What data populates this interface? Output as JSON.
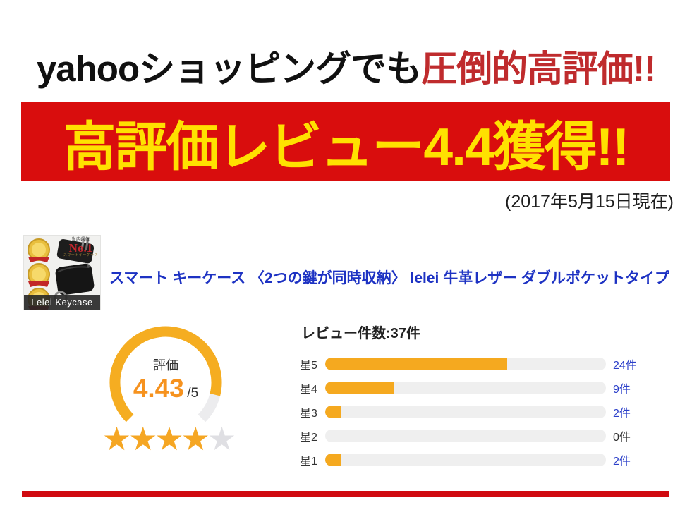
{
  "headline": {
    "black_part": "yahooショッピングでも",
    "red_part": "圧倒的高評価!!",
    "red_color": "#bf2b2d"
  },
  "banner": {
    "text": "高評価レビュー4.4獲得!!",
    "bg_color": "#d90d0d",
    "text_color": "#ffe100"
  },
  "date_note": "(2017年5月15日現在)",
  "product": {
    "title": "スマート キーケース 〈2つの鍵が同時収納〉 lelei 牛革レザー ダブルポケットタイプ",
    "title_color": "#1d32c3",
    "thumbnail": {
      "badge_tiny_top": "当店人気",
      "badge_no1": "No.1",
      "badge_no1_color": "#c1272d",
      "badge_tiny_sub": "スマートキーケース",
      "caption": "Lelei Keycase"
    }
  },
  "rating": {
    "label": "評価",
    "score": "4.43",
    "value": 4.43,
    "max": 5,
    "out_of": "/5",
    "score_color": "#f6921e",
    "ring_color": "#f5ad21",
    "ring_rest_color": "#ececee",
    "stars_filled": 4,
    "stars_total": 5,
    "star_color": "#f5a623",
    "star_empty_color": "#dfdfe3",
    "star_glyph": "★"
  },
  "reviews": {
    "header": "レビュー件数:37件",
    "total": 37,
    "bar_color": "#f5a91f",
    "track_color": "#efefef",
    "count_link_color": "#2b3fc9",
    "count_zero_color": "#333333",
    "rows": [
      {
        "label": "星5",
        "count": 24,
        "count_label": "24件"
      },
      {
        "label": "星4",
        "count": 9,
        "count_label": "9件"
      },
      {
        "label": "星3",
        "count": 2,
        "count_label": "2件"
      },
      {
        "label": "星2",
        "count": 0,
        "count_label": "0件"
      },
      {
        "label": "星1",
        "count": 2,
        "count_label": "2件"
      }
    ]
  },
  "bottom_stripe_color": "#d00a10",
  "chart_data": [
    {
      "type": "bar",
      "orientation": "horizontal",
      "title": "レビュー件数:37件",
      "categories": [
        "星5",
        "星4",
        "星3",
        "星2",
        "星1"
      ],
      "values": [
        24,
        9,
        2,
        0,
        2
      ],
      "value_labels": [
        "24件",
        "9件",
        "2件",
        "0件",
        "2件"
      ],
      "total": 37,
      "xlim": [
        0,
        37
      ],
      "bar_color": "#f5a91f",
      "track_color": "#efefef",
      "grid": false,
      "legend": false
    },
    {
      "type": "gauge",
      "label": "評価",
      "value": 4.43,
      "max": 5,
      "display": "4.43 /5",
      "arc_degrees_total": 270,
      "stars_filled": 4,
      "stars_total": 5
    }
  ]
}
